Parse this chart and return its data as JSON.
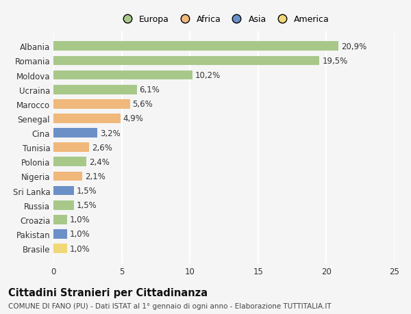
{
  "countries": [
    "Albania",
    "Romania",
    "Moldova",
    "Ucraina",
    "Marocco",
    "Senegal",
    "Cina",
    "Tunisia",
    "Polonia",
    "Nigeria",
    "Sri Lanka",
    "Russia",
    "Croazia",
    "Pakistan",
    "Brasile"
  ],
  "values": [
    20.9,
    19.5,
    10.2,
    6.1,
    5.6,
    4.9,
    3.2,
    2.6,
    2.4,
    2.1,
    1.5,
    1.5,
    1.0,
    1.0,
    1.0
  ],
  "labels": [
    "20,9%",
    "19,5%",
    "10,2%",
    "6,1%",
    "5,6%",
    "4,9%",
    "3,2%",
    "2,6%",
    "2,4%",
    "2,1%",
    "1,5%",
    "1,5%",
    "1,0%",
    "1,0%",
    "1,0%"
  ],
  "continents": [
    "Europa",
    "Europa",
    "Europa",
    "Europa",
    "Africa",
    "Africa",
    "Asia",
    "Africa",
    "Europa",
    "Africa",
    "Asia",
    "Europa",
    "Europa",
    "Asia",
    "America"
  ],
  "colors": {
    "Europa": "#a8c88a",
    "Africa": "#f0b87a",
    "Asia": "#6b90c8",
    "America": "#f0d878"
  },
  "legend_labels": [
    "Europa",
    "Africa",
    "Asia",
    "America"
  ],
  "legend_colors": [
    "#a8c88a",
    "#f0b87a",
    "#6b90c8",
    "#f0d878"
  ],
  "xlim": [
    0,
    25
  ],
  "xticks": [
    0,
    5,
    10,
    15,
    20,
    25
  ],
  "title": "Cittadini Stranieri per Cittadinanza",
  "subtitle": "COMUNE DI FANO (PU) - Dati ISTAT al 1° gennaio di ogni anno - Elaborazione TUTTITALIA.IT",
  "background_color": "#f5f5f5",
  "grid_color": "#ffffff",
  "bar_height": 0.65,
  "label_fontsize": 8.5,
  "title_fontsize": 10.5,
  "subtitle_fontsize": 7.5
}
